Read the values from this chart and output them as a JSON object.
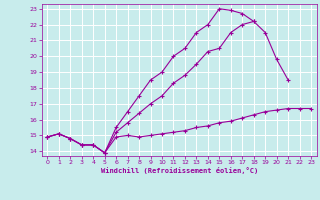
{
  "title": "",
  "xlabel": "Windchill (Refroidissement éolien,°C)",
  "ylabel": "",
  "bg_color": "#c8ecec",
  "grid_color": "#ffffff",
  "line_color": "#990099",
  "xlim": [
    -0.5,
    23.5
  ],
  "ylim": [
    13.7,
    23.3
  ],
  "xticks": [
    0,
    1,
    2,
    3,
    4,
    5,
    6,
    7,
    8,
    9,
    10,
    11,
    12,
    13,
    14,
    15,
    16,
    17,
    18,
    19,
    20,
    21,
    22,
    23
  ],
  "yticks": [
    14,
    15,
    16,
    17,
    18,
    19,
    20,
    21,
    22,
    23
  ],
  "line1_x": [
    0,
    1,
    2,
    3,
    4,
    5,
    6,
    7,
    8,
    9,
    10,
    11,
    12,
    13,
    14,
    15,
    16,
    17,
    18,
    19,
    20,
    21,
    22,
    23
  ],
  "line1_y": [
    14.9,
    15.1,
    14.8,
    14.4,
    14.4,
    13.9,
    14.9,
    15.0,
    14.9,
    15.0,
    15.1,
    15.2,
    15.3,
    15.5,
    15.6,
    15.8,
    15.9,
    16.1,
    16.3,
    16.5,
    16.6,
    16.7,
    16.7,
    16.7
  ],
  "line2_x": [
    0,
    1,
    2,
    3,
    4,
    5,
    6,
    7,
    8,
    9,
    10,
    11,
    12,
    13,
    14,
    15,
    16,
    17,
    18,
    19,
    20,
    21,
    22,
    23
  ],
  "line2_y": [
    14.9,
    15.1,
    14.8,
    14.4,
    14.4,
    13.9,
    15.2,
    15.8,
    16.4,
    17.0,
    17.5,
    18.3,
    18.8,
    19.5,
    20.3,
    20.5,
    21.5,
    22.0,
    22.2,
    21.5,
    19.8,
    18.5,
    null,
    null
  ],
  "line3_x": [
    0,
    1,
    2,
    3,
    4,
    5,
    6,
    7,
    8,
    9,
    10,
    11,
    12,
    13,
    14,
    15,
    16,
    17,
    18,
    19,
    20,
    21,
    22,
    23
  ],
  "line3_y": [
    14.9,
    15.1,
    14.8,
    14.4,
    14.4,
    13.9,
    15.5,
    16.5,
    17.5,
    18.5,
    19.0,
    20.0,
    20.5,
    21.5,
    22.0,
    23.0,
    22.9,
    22.7,
    22.2,
    null,
    null,
    null,
    null,
    null
  ]
}
